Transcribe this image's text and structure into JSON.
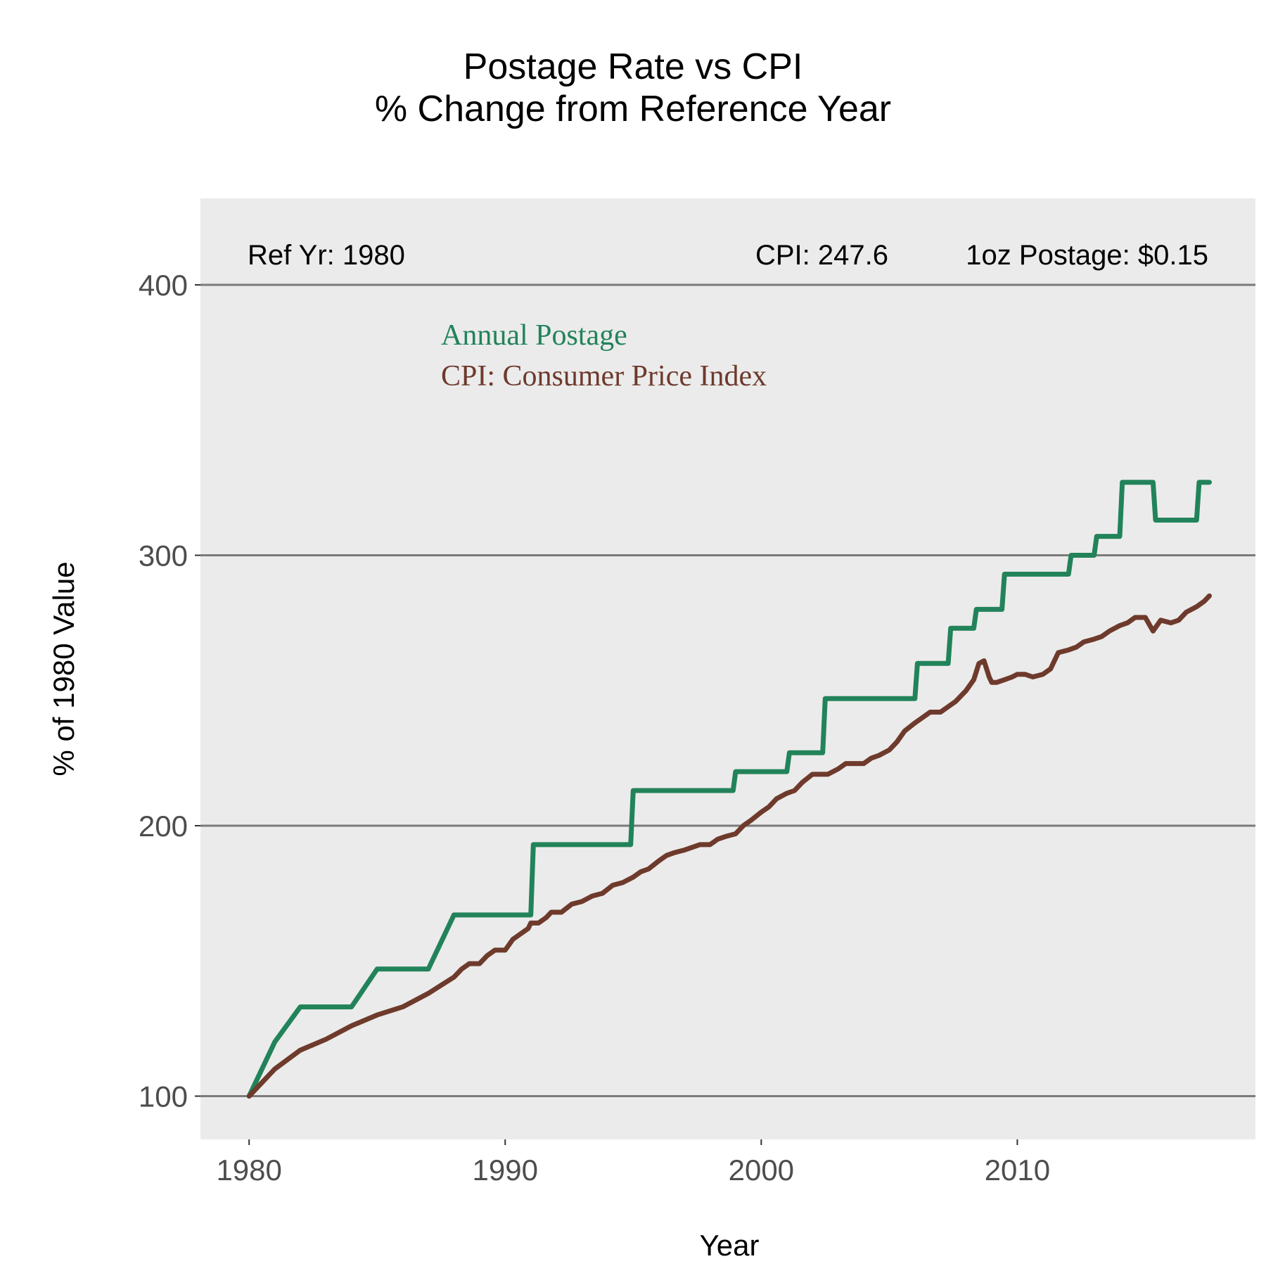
{
  "chart_data": {
    "type": "line",
    "title": "Postage Rate vs CPI",
    "subtitle": "% Change from Reference Year",
    "xlabel": "Year",
    "ylabel": "% of 1980 Value",
    "xlim": [
      1978.1,
      2019.3
    ],
    "ylim": [
      84,
      432
    ],
    "x_ticks": [
      1980,
      1990,
      2000,
      2010
    ],
    "y_ticks": [
      100,
      200,
      300,
      400
    ],
    "grid": "horizontal",
    "background": "#ebebeb",
    "annotations": {
      "ref_year": "Ref Yr: 1980",
      "cpi": "CPI: 247.6",
      "postage": "1oz Postage: $0.15"
    },
    "legend_placement": "top-left inside",
    "series": [
      {
        "name": "Annual Postage",
        "color": "#22835a",
        "x": [
          1980.0,
          1981.0,
          1982.0,
          1984.0,
          1985.0,
          1987.0,
          1988.0,
          1991.0,
          1991.1,
          1994.9,
          1995.0,
          1998.9,
          1999.0,
          2001.0,
          2001.1,
          2002.4,
          2002.5,
          2006.0,
          2006.1,
          2007.3,
          2007.4,
          2008.3,
          2008.4,
          2009.4,
          2009.5,
          2012.0,
          2012.1,
          2013.0,
          2013.1,
          2014.0,
          2014.1,
          2015.3,
          2015.4,
          2017.0,
          2017.1,
          2017.5
        ],
        "y": [
          100,
          120,
          133,
          133,
          147,
          147,
          167,
          167,
          193,
          193,
          213,
          213,
          220,
          220,
          227,
          227,
          247,
          247,
          260,
          260,
          273,
          273,
          280,
          280,
          293,
          293,
          300,
          300,
          307,
          307,
          327,
          327,
          313,
          313,
          327,
          327
        ]
      },
      {
        "name": "CPI: Consumer Price Index",
        "color": "#6e3a2c",
        "x": [
          1980.0,
          1981.0,
          1982.0,
          1983.0,
          1984.0,
          1985.0,
          1986.0,
          1987.0,
          1987.5,
          1988.0,
          1988.3,
          1988.6,
          1989.0,
          1989.3,
          1989.6,
          1990.0,
          1990.3,
          1990.6,
          1990.9,
          1991.0,
          1991.3,
          1991.6,
          1991.8,
          1992.2,
          1992.6,
          1993.0,
          1993.4,
          1993.8,
          1994.2,
          1994.6,
          1995.0,
          1995.3,
          1995.6,
          1996.0,
          1996.3,
          1996.6,
          1997.0,
          1997.3,
          1997.6,
          1998.0,
          1998.3,
          1998.6,
          1999.0,
          1999.3,
          1999.6,
          2000.0,
          2000.3,
          2000.6,
          2001.0,
          2001.3,
          2001.6,
          2002.0,
          2002.3,
          2002.6,
          2003.0,
          2003.3,
          2003.6,
          2004.0,
          2004.3,
          2004.6,
          2005.0,
          2005.3,
          2005.6,
          2006.0,
          2006.3,
          2006.6,
          2007.0,
          2007.3,
          2007.6,
          2008.0,
          2008.3,
          2008.5,
          2008.7,
          2008.9,
          2009.0,
          2009.2,
          2009.5,
          2009.8,
          2010.0,
          2010.3,
          2010.6,
          2011.0,
          2011.3,
          2011.6,
          2012.0,
          2012.3,
          2012.6,
          2013.0,
          2013.3,
          2013.6,
          2014.0,
          2014.3,
          2014.6,
          2015.0,
          2015.3,
          2015.6,
          2016.0,
          2016.3,
          2016.6,
          2017.0,
          2017.3,
          2017.5
        ],
        "y": [
          100,
          110,
          117,
          121,
          126,
          130,
          133,
          138,
          141,
          144,
          147,
          149,
          149,
          152,
          154,
          154,
          158,
          160,
          162,
          164,
          164,
          166,
          168,
          168,
          171,
          172,
          174,
          175,
          178,
          179,
          181,
          183,
          184,
          187,
          189,
          190,
          191,
          192,
          193,
          193,
          195,
          196,
          197,
          200,
          202,
          205,
          207,
          210,
          212,
          213,
          216,
          219,
          219,
          219,
          221,
          223,
          223,
          223,
          225,
          226,
          228,
          231,
          235,
          238,
          240,
          242,
          242,
          244,
          246,
          250,
          254,
          260,
          261,
          255,
          253,
          253,
          254,
          255,
          256,
          256,
          255,
          256,
          258,
          264,
          265,
          266,
          268,
          269,
          270,
          272,
          274,
          275,
          277,
          277,
          272,
          276,
          275,
          276,
          279,
          281,
          283,
          285
        ]
      }
    ]
  }
}
